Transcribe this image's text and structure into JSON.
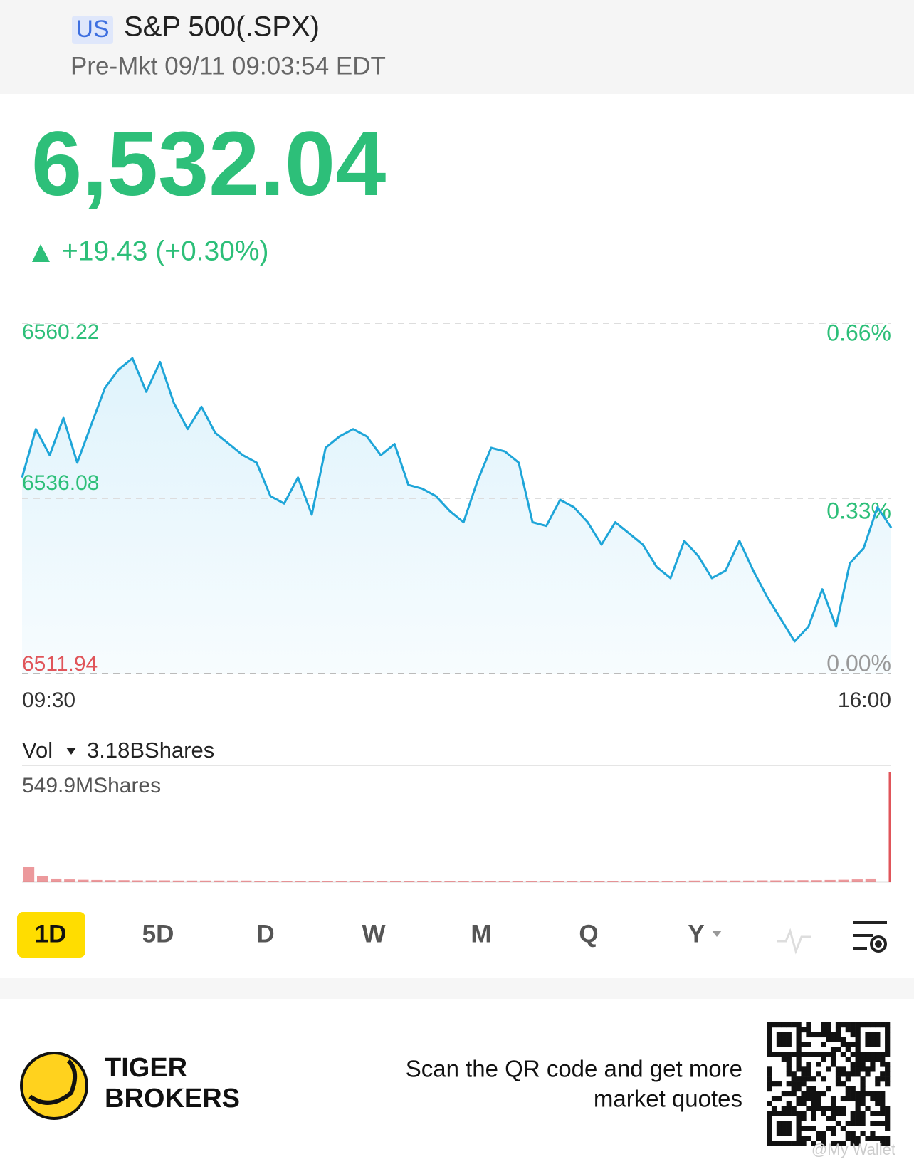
{
  "header": {
    "market": "US",
    "title": "S&P 500(.SPX)",
    "status": "Pre-Mkt 09/11 09:03:54 EDT"
  },
  "quote": {
    "price": "6,532.04",
    "change": "+19.43 (+0.30%)"
  },
  "chart_data": [
    {
      "type": "line",
      "color": "#1ea5d8",
      "fill": "#e4f6fd",
      "categories": [
        "09:30",
        null,
        null,
        null,
        null,
        null,
        null,
        null,
        null,
        null,
        null,
        null,
        null,
        null,
        null,
        null,
        null,
        null,
        null,
        null,
        null,
        null,
        null,
        null,
        null,
        null,
        null,
        null,
        null,
        null,
        null,
        null,
        null,
        null,
        null,
        null,
        null,
        null,
        null,
        null,
        null,
        null,
        null,
        null,
        null,
        null,
        null,
        null,
        null,
        null,
        null,
        null,
        null,
        null,
        null,
        null,
        null,
        null,
        null,
        null,
        null,
        null,
        null,
        "16:00"
      ],
      "values": [
        6538.96,
        6545.63,
        6542.04,
        6547.17,
        6541.01,
        6546.15,
        6551.28,
        6553.85,
        6555.39,
        6550.77,
        6554.88,
        6549.23,
        6545.63,
        6548.71,
        6545.12,
        6543.58,
        6542.04,
        6541.01,
        6536.39,
        6535.36,
        6538.96,
        6533.82,
        6543.06,
        6544.61,
        6545.63,
        6544.61,
        6542.04,
        6543.58,
        6537.93,
        6537.42,
        6536.39,
        6534.33,
        6532.79,
        6538.44,
        6543.06,
        6542.55,
        6541.01,
        6532.79,
        6532.28,
        6535.87,
        6534.85,
        6532.79,
        6529.71,
        6532.79,
        6531.25,
        6529.71,
        6526.63,
        6525.09,
        6530.22,
        6528.17,
        6525.09,
        6526.12,
        6530.22,
        6526.12,
        6522.52,
        6519.44,
        6516.36,
        6518.41,
        6523.55,
        6518.41,
        6527.14,
        6529.2,
        6534.85,
        6532.04
      ],
      "ylim": [
        6511.94,
        6560.22
      ],
      "yticks": [
        6511.94,
        6536.08,
        6560.22
      ],
      "ytick_colors": [
        "#e0555a",
        "#2dbf79",
        "#2dbf79"
      ],
      "y2lim": [
        0,
        0.66
      ],
      "y2ticks": [
        {
          "value": 0,
          "label": "0.00%"
        },
        {
          "value": 0.33,
          "label": "0.33%"
        },
        {
          "value": 0.66,
          "label": "0.66%"
        }
      ],
      "y2tick_colors": [
        "#999999",
        "#2dbf79",
        "#2dbf79"
      ],
      "grid": true
    },
    {
      "type": "bar",
      "title": "Vol",
      "subtitle": "3.18BShares",
      "color": "#e0555a",
      "values": [
        75,
        32,
        18,
        14,
        12,
        11,
        10,
        10,
        9,
        9,
        9,
        8,
        8,
        8,
        8,
        8,
        8,
        7,
        7,
        7,
        7,
        7,
        7,
        7,
        7,
        7,
        7,
        7,
        7,
        7,
        7,
        7,
        7,
        7,
        7,
        7,
        7,
        7,
        7,
        7,
        7,
        7,
        7,
        7,
        7,
        7,
        7,
        7,
        7,
        8,
        8,
        8,
        8,
        8,
        9,
        9,
        9,
        10,
        10,
        11,
        12,
        14,
        18,
        549.9
      ],
      "ylim": [
        0,
        549.9
      ],
      "yticks": [
        {
          "value": 549.9,
          "label": "549.9MShares"
        }
      ]
    }
  ],
  "tabs": [
    "1D",
    "5D",
    "D",
    "W",
    "M",
    "Q",
    "Y"
  ],
  "footer": {
    "brand": [
      "TIGER",
      "BROKERS"
    ],
    "cta": [
      "Scan the QR code and get more",
      "market quotes"
    ],
    "watermark": "@My Wallet"
  }
}
